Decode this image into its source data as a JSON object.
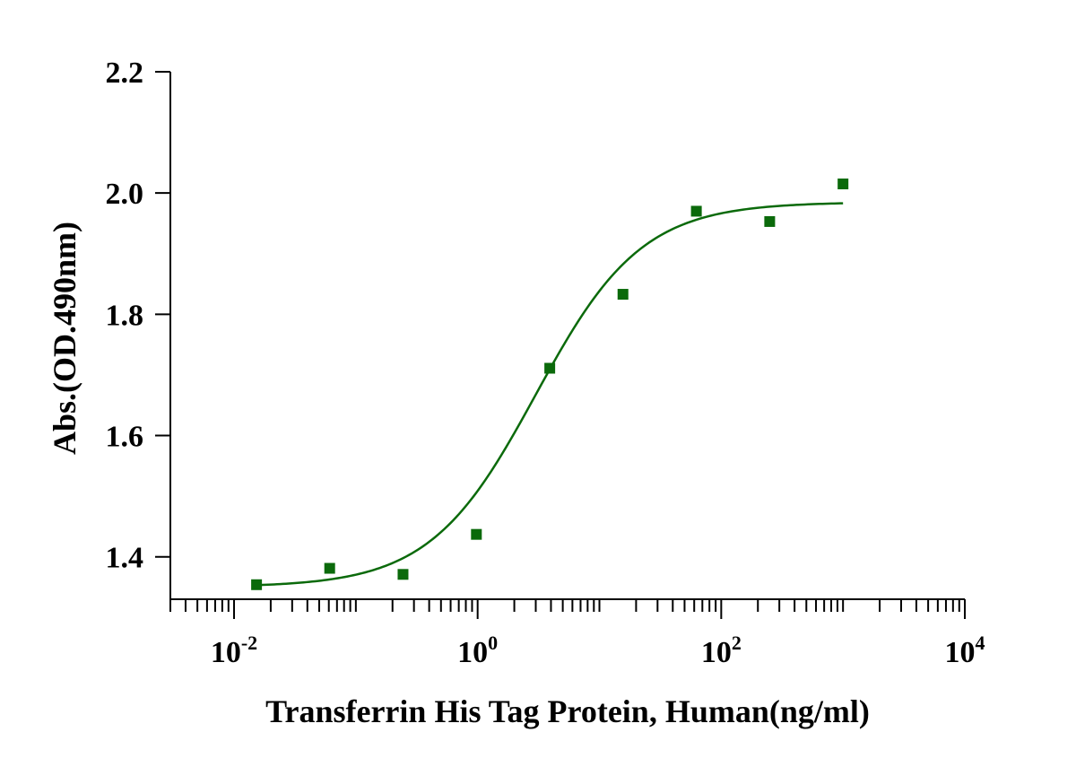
{
  "chart_data": {
    "type": "scatter",
    "xlabel": "Transferrin His Tag Protein, Human(ng/ml)",
    "ylabel": "Abs.(OD.490nm)",
    "x_scale": "log10",
    "xlim": [
      0.003,
      10000
    ],
    "ylim": [
      1.33,
      2.2
    ],
    "x_ticks": [
      {
        "value": 0.01,
        "base": "10",
        "exp": "-2"
      },
      {
        "value": 1,
        "base": "10",
        "exp": "0"
      },
      {
        "value": 100,
        "base": "10",
        "exp": "2"
      },
      {
        "value": 10000,
        "base": "10",
        "exp": "4"
      }
    ],
    "y_ticks": [
      {
        "value": 1.4,
        "label": "1.4"
      },
      {
        "value": 1.6,
        "label": "1.6"
      },
      {
        "value": 1.8,
        "label": "1.8"
      },
      {
        "value": 2.0,
        "label": "2.0"
      },
      {
        "value": 2.2,
        "label": "2.2"
      }
    ],
    "series": [
      {
        "points": [
          {
            "x": 0.0153,
            "y": 1.354
          },
          {
            "x": 0.061,
            "y": 1.381
          },
          {
            "x": 0.244,
            "y": 1.371
          },
          {
            "x": 0.977,
            "y": 1.437
          },
          {
            "x": 3.91,
            "y": 1.711
          },
          {
            "x": 15.6,
            "y": 1.833
          },
          {
            "x": 62.5,
            "y": 1.97
          },
          {
            "x": 250,
            "y": 1.953
          },
          {
            "x": 1000,
            "y": 2.015
          }
        ],
        "fit": {
          "model": "4PL",
          "bottom": 1.35,
          "top": 1.985,
          "ec50": 3.0,
          "hill": 1.0,
          "x_range": [
            0.0153,
            1000
          ]
        }
      }
    ],
    "grid": false,
    "legend": "none",
    "colors": {
      "marker": "#0b6a0b",
      "curve": "#0b6a0b",
      "axis": "#000000"
    }
  }
}
